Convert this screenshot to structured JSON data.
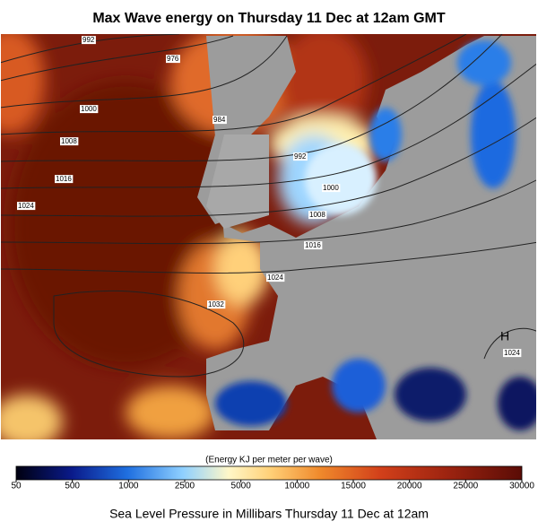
{
  "header": {
    "title": "Max Wave energy on Thursday 11 Dec at 12am GMT"
  },
  "map": {
    "isobar_labels": [
      "992",
      "976",
      "1000",
      "984",
      "1008",
      "992",
      "1016",
      "1000",
      "1024",
      "1008",
      "1016",
      "1024",
      "1032",
      "1024"
    ],
    "high_marker": "H"
  },
  "colorbar": {
    "label": "(Energy KJ per meter per wave)",
    "ticks": [
      "50",
      "500",
      "1000",
      "2500",
      "5000",
      "10000",
      "15000",
      "20000",
      "25000",
      "30000"
    ]
  },
  "footer": {
    "caption": "Sea Level Pressure in Millibars Thursday 11 Dec at 12am"
  }
}
